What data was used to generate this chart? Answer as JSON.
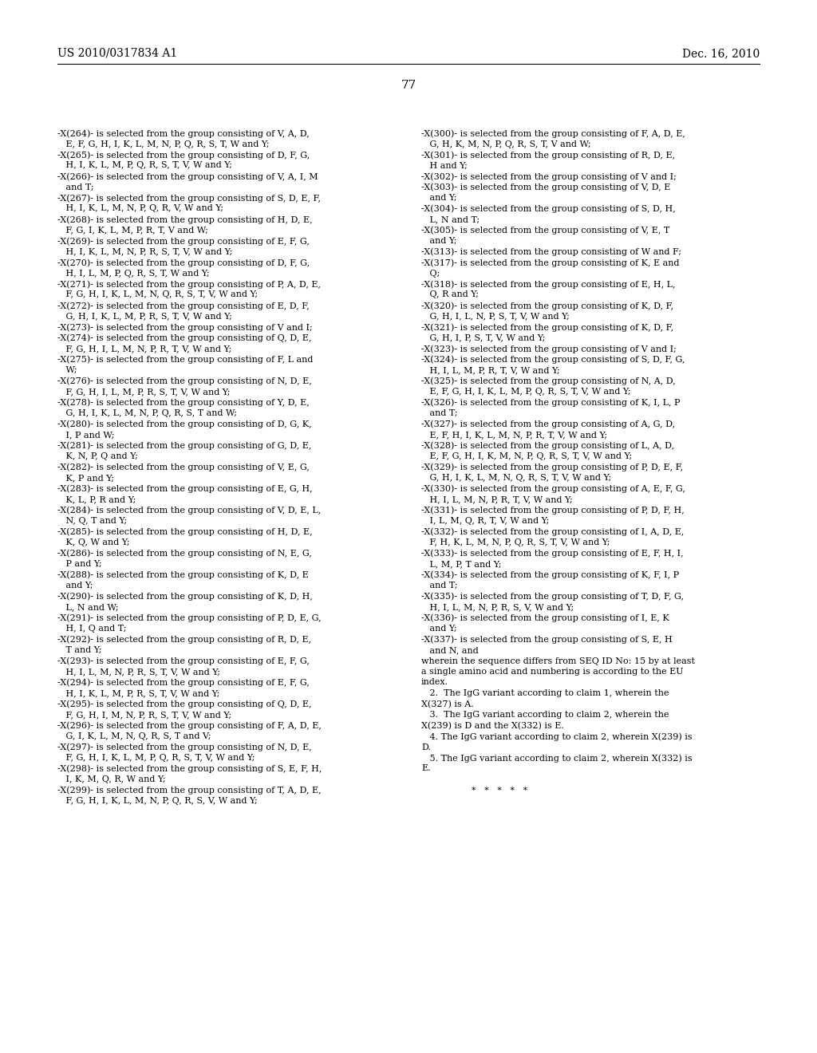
{
  "header_left": "US 2010/0317834 A1",
  "header_right": "Dec. 16, 2010",
  "page_number": "77",
  "background_color": "#ffffff",
  "text_color": "#000000",
  "left_column": [
    [
      "-X(264)- is selected from the group consisting of V, A, D,",
      false
    ],
    [
      "   E, F, G, H, I, K, L, M, N, P, Q, R, S, T, W and Y;",
      false
    ],
    [
      "-X(265)- is selected from the group consisting of D, F, G,",
      false
    ],
    [
      "   H, I, K, L, M, P, Q, R, S, T, V, W and Y;",
      false
    ],
    [
      "-X(266)- is selected from the group consisting of V, A, I, M",
      false
    ],
    [
      "   and T;",
      false
    ],
    [
      "-X(267)- is selected from the group consisting of S, D, E, F,",
      false
    ],
    [
      "   H, I, K, L, M, N, P, Q, R, V, W and Y;",
      false
    ],
    [
      "-X(268)- is selected from the group consisting of H, D, E,",
      false
    ],
    [
      "   F, G, I, K, L, M, P, R, T, V and W;",
      false
    ],
    [
      "-X(269)- is selected from the group consisting of E, F, G,",
      false
    ],
    [
      "   H, I, K, L, M, N, P, R, S, T, V, W and Y;",
      false
    ],
    [
      "-X(270)- is selected from the group consisting of D, F, G,",
      false
    ],
    [
      "   H, I, L, M, P, Q, R, S, T, W and Y;",
      false
    ],
    [
      "-X(271)- is selected from the group consisting of P, A, D, E,",
      false
    ],
    [
      "   F, G, H, I, K, L, M, N, Q, R, S, T, V, W and Y;",
      false
    ],
    [
      "-X(272)- is selected from the group consisting of E, D, F,",
      false
    ],
    [
      "   G, H, I, K, L, M, P, R, S, T, V, W and Y;",
      false
    ],
    [
      "-X(273)- is selected from the group consisting of V and I;",
      false
    ],
    [
      "-X(274)- is selected from the group consisting of Q, D, E,",
      false
    ],
    [
      "   F, G, H, I, L, M, N, P, R, T, V, W and Y;",
      false
    ],
    [
      "-X(275)- is selected from the group consisting of F, L and",
      false
    ],
    [
      "   W;",
      false
    ],
    [
      "-X(276)- is selected from the group consisting of N, D, E,",
      false
    ],
    [
      "   F, G, H, I, L, M, P, R, S, T, V, W and Y;",
      false
    ],
    [
      "-X(278)- is selected from the group consisting of Y, D, E,",
      false
    ],
    [
      "   G, H, I, K, L, M, N, P, Q, R, S, T and W;",
      false
    ],
    [
      "-X(280)- is selected from the group consisting of D, G, K,",
      false
    ],
    [
      "   I, P and W;",
      false
    ],
    [
      "-X(281)- is selected from the group consisting of G, D, E,",
      false
    ],
    [
      "   K, N, P, Q and Y;",
      false
    ],
    [
      "-X(282)- is selected from the group consisting of V, E, G,",
      false
    ],
    [
      "   K, P and Y;",
      false
    ],
    [
      "-X(283)- is selected from the group consisting of E, G, H,",
      false
    ],
    [
      "   K, L, P, R and Y;",
      false
    ],
    [
      "-X(284)- is selected from the group consisting of V, D, E, L,",
      false
    ],
    [
      "   N, Q, T and Y;",
      false
    ],
    [
      "-X(285)- is selected from the group consisting of H, D, E,",
      false
    ],
    [
      "   K, Q, W and Y;",
      false
    ],
    [
      "-X(286)- is selected from the group consisting of N, E, G,",
      false
    ],
    [
      "   P and Y;",
      false
    ],
    [
      "-X(288)- is selected from the group consisting of K, D, E",
      false
    ],
    [
      "   and Y;",
      false
    ],
    [
      "-X(290)- is selected from the group consisting of K, D, H,",
      false
    ],
    [
      "   L, N and W;",
      false
    ],
    [
      "-X(291)- is selected from the group consisting of P, D, E, G,",
      false
    ],
    [
      "   H, I, Q and T;",
      false
    ],
    [
      "-X(292)- is selected from the group consisting of R, D, E,",
      false
    ],
    [
      "   T and Y;",
      false
    ],
    [
      "-X(293)- is selected from the group consisting of E, F, G,",
      false
    ],
    [
      "   H, I, L, M, N, P, R, S, T, V, W and Y;",
      false
    ],
    [
      "-X(294)- is selected from the group consisting of E, F, G,",
      false
    ],
    [
      "   H, I, K, L, M, P, R, S, T, V, W and Y;",
      false
    ],
    [
      "-X(295)- is selected from the group consisting of Q, D, E,",
      false
    ],
    [
      "   F, G, H, I, M, N, P, R, S, T, V, W and Y;",
      false
    ],
    [
      "-X(296)- is selected from the group consisting of F, A, D, E,",
      false
    ],
    [
      "   G, I, K, L, M, N, Q, R, S, T and V;",
      false
    ],
    [
      "-X(297)- is selected from the group consisting of N, D, E,",
      false
    ],
    [
      "   F, G, H, I, K, L, M, P, Q, R, S, T, V, W and Y;",
      false
    ],
    [
      "-X(298)- is selected from the group consisting of S, E, F, H,",
      false
    ],
    [
      "   I, K, M, Q, R, W and Y;",
      false
    ],
    [
      "-X(299)- is selected from the group consisting of T, A, D, E,",
      false
    ],
    [
      "   F, G, H, I, K, L, M, N, P, Q, R, S, V, W and Y;",
      false
    ]
  ],
  "right_column": [
    [
      "-X(300)- is selected from the group consisting of F, A, D, E,",
      false
    ],
    [
      "   G, H, K, M, N, P, Q, R, S, T, V and W;",
      false
    ],
    [
      "-X(301)- is selected from the group consisting of R, D, E,",
      false
    ],
    [
      "   H and Y;",
      false
    ],
    [
      "-X(302)- is selected from the group consisting of V and I;",
      false
    ],
    [
      "-X(303)- is selected from the group consisting of V, D, E",
      false
    ],
    [
      "   and Y;",
      false
    ],
    [
      "-X(304)- is selected from the group consisting of S, D, H,",
      false
    ],
    [
      "   L, N and T;",
      false
    ],
    [
      "-X(305)- is selected from the group consisting of V, E, T",
      false
    ],
    [
      "   and Y;",
      false
    ],
    [
      "-X(313)- is selected from the group consisting of W and F;",
      false
    ],
    [
      "-X(317)- is selected from the group consisting of K, E and",
      false
    ],
    [
      "   Q;",
      false
    ],
    [
      "-X(318)- is selected from the group consisting of E, H, L,",
      false
    ],
    [
      "   Q, R and Y;",
      false
    ],
    [
      "-X(320)- is selected from the group consisting of K, D, F,",
      false
    ],
    [
      "   G, H, I, L, N, P, S, T, V, W and Y;",
      false
    ],
    [
      "-X(321)- is selected from the group consisting of K, D, F,",
      false
    ],
    [
      "   G, H, I, P, S, T, V, W and Y;",
      false
    ],
    [
      "-X(323)- is selected from the group consisting of V and I;",
      false
    ],
    [
      "-X(324)- is selected from the group consisting of S, D, F, G,",
      false
    ],
    [
      "   H, I, L, M, P, R, T, V, W and Y;",
      false
    ],
    [
      "-X(325)- is selected from the group consisting of N, A, D,",
      false
    ],
    [
      "   E, F, G, H, I, K, L, M, P, Q, R, S, T, V, W and Y;",
      false
    ],
    [
      "-X(326)- is selected from the group consisting of K, I, L, P",
      false
    ],
    [
      "   and T;",
      false
    ],
    [
      "-X(327)- is selected from the group consisting of A, G, D,",
      false
    ],
    [
      "   E, F, H, I, K, L, M, N, P, R, T, V, W and Y;",
      false
    ],
    [
      "-X(328)- is selected from the group consisting of L, A, D,",
      false
    ],
    [
      "   E, F, G, H, I, K, M, N, P, Q, R, S, T, V, W and Y;",
      false
    ],
    [
      "-X(329)- is selected from the group consisting of P, D, E, F,",
      false
    ],
    [
      "   G, H, I, K, L, M, N, Q, R, S, T, V, W and Y;",
      false
    ],
    [
      "-X(330)- is selected from the group consisting of A, E, F, G,",
      false
    ],
    [
      "   H, I, L, M, N, P, R, T, V, W and Y;",
      false
    ],
    [
      "-X(331)- is selected from the group consisting of P, D, F, H,",
      false
    ],
    [
      "   I, L, M, Q, R, T, V, W and Y;",
      false
    ],
    [
      "-X(332)- is selected from the group consisting of I, A, D, E,",
      false
    ],
    [
      "   F, H, K, L, M, N, P, Q, R, S, T, V, W and Y;",
      false
    ],
    [
      "-X(333)- is selected from the group consisting of E, F, H, I,",
      false
    ],
    [
      "   L, M, P, T and Y;",
      false
    ],
    [
      "-X(334)- is selected from the group consisting of K, F, I, P",
      false
    ],
    [
      "   and T;",
      false
    ],
    [
      "-X(335)- is selected from the group consisting of T, D, F, G,",
      false
    ],
    [
      "   H, I, L, M, N, P, R, S, V, W and Y;",
      false
    ],
    [
      "-X(336)- is selected from the group consisting of I, E, K",
      false
    ],
    [
      "   and Y;",
      false
    ],
    [
      "-X(337)- is selected from the group consisting of S, E, H",
      false
    ],
    [
      "   and N, and",
      false
    ],
    [
      "wherein the sequence differs from SEQ ID No: 15 by at least",
      false
    ],
    [
      "a single amino acid and numbering is according to the EU",
      false
    ],
    [
      "index.",
      false
    ],
    [
      "   2.  The IgG variant according to claim 1, wherein the",
      false
    ],
    [
      "X(327) is A.",
      false
    ],
    [
      "   3.  The IgG variant according to claim 2, wherein the",
      false
    ],
    [
      "X(239) is D and the X(332) is E.",
      false
    ],
    [
      "   4. The IgG variant according to claim 2, wherein X(239) is",
      false
    ],
    [
      "D.",
      false
    ],
    [
      "   5. The IgG variant according to claim 2, wherein X(332) is",
      false
    ],
    [
      "E.",
      false
    ],
    [
      "",
      false
    ],
    [
      "                  *   *   *   *   *",
      false
    ]
  ]
}
